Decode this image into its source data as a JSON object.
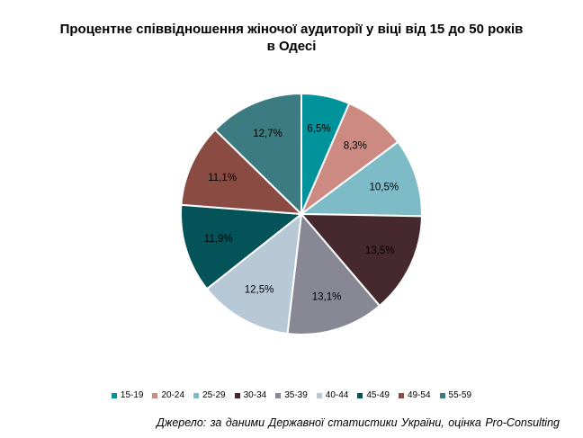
{
  "title_line1": "Процентне співвідношення жіночої аудиторії у віці від 15 до 50 років",
  "title_line2": "в Одесі",
  "source": "Джерело: за даними Державної статистики України, оцінка Pro-Consulting",
  "chart_data": {
    "type": "pie",
    "title": "Процентне співвідношення жіночої аудиторії у віці від 15 до 50 років в Одесі",
    "legend_position": "bottom",
    "categories": [
      "15-19",
      "20-24",
      "25-29",
      "30-34",
      "35-39",
      "40-44",
      "45-49",
      "49-54",
      "55-59"
    ],
    "values": [
      6.5,
      8.3,
      10.5,
      13.5,
      13.1,
      12.5,
      11.9,
      11.1,
      12.7
    ],
    "labels": [
      "6,5%",
      "8,3%",
      "10,5%",
      "13,5%",
      "13,1%",
      "12,5%",
      "11,9%",
      "11,1%",
      "12,7%"
    ],
    "colors": [
      "#00939c",
      "#cc8a82",
      "#7dbcc7",
      "#45292e",
      "#888895",
      "#b7c8d6",
      "#035358",
      "#8a4b43",
      "#3b7b81"
    ]
  }
}
